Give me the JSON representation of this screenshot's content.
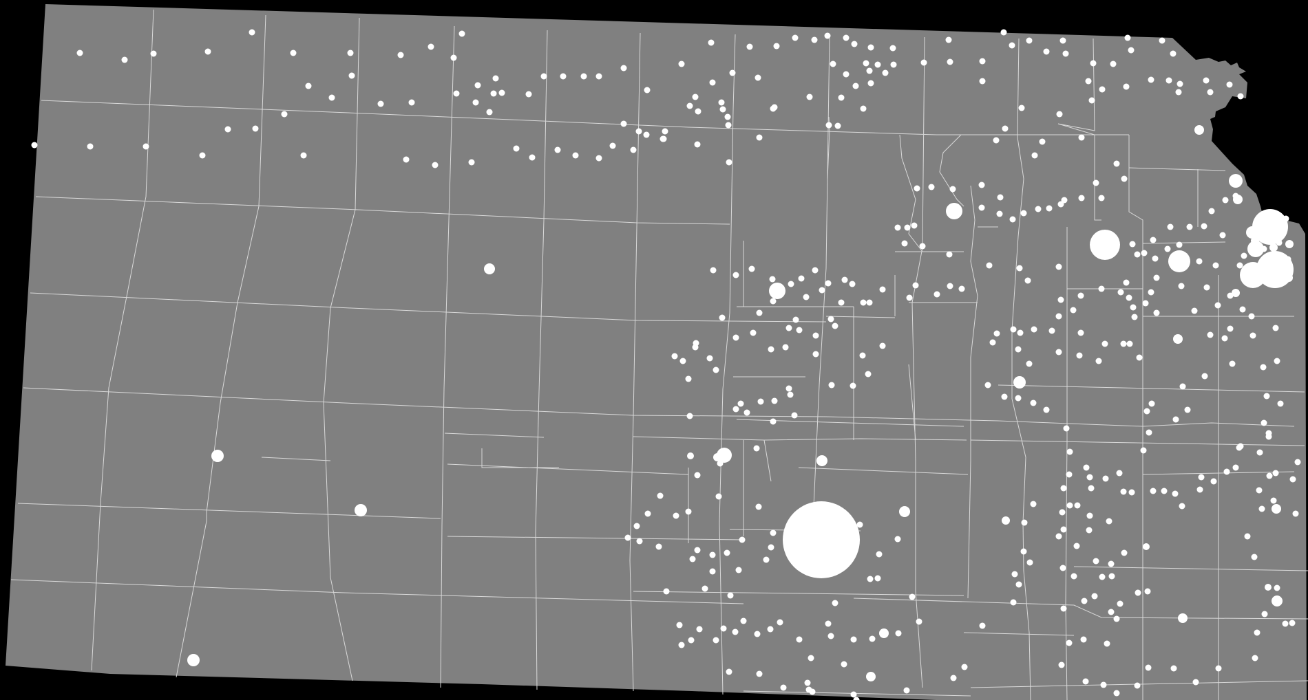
{
  "map": {
    "subject": "",
    "colors": {
      "background": "#000000",
      "land": "#808080",
      "county_border": "#d9d9d9",
      "place_marker": "#ffffff"
    },
    "marker_shape": "circle",
    "marker_size_encoding": "proportional"
  }
}
